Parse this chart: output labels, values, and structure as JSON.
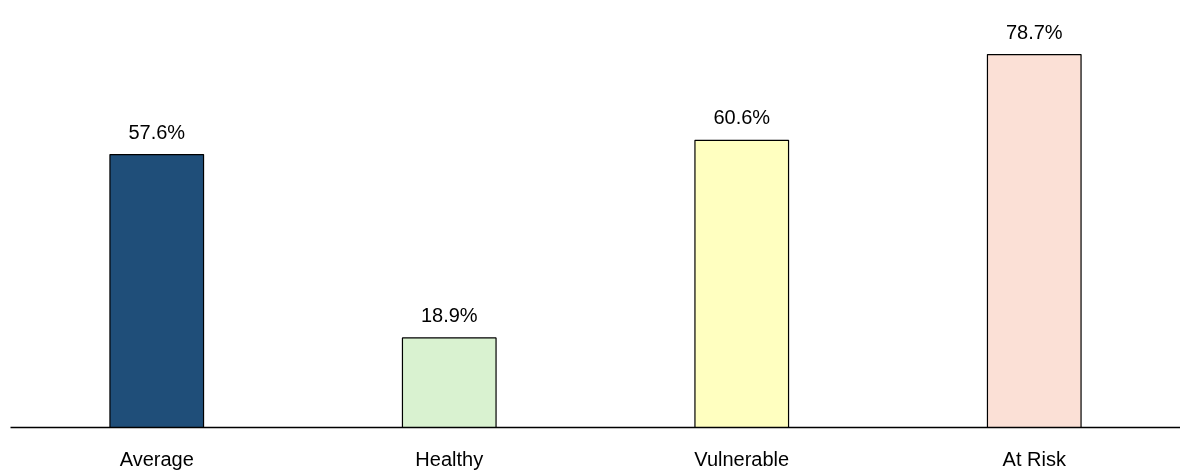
{
  "chart_data": {
    "type": "bar",
    "categories": [
      "Average",
      "Healthy",
      "Vulnerable",
      "At Risk"
    ],
    "values": [
      57.6,
      18.9,
      60.6,
      78.7
    ],
    "colors": [
      "#1f4e79",
      "#d9f2d0",
      "#ffffc0",
      "#fbe0d6"
    ],
    "value_labels": [
      "57.6%",
      "18.9%",
      "60.6%",
      "78.7%"
    ]
  }
}
